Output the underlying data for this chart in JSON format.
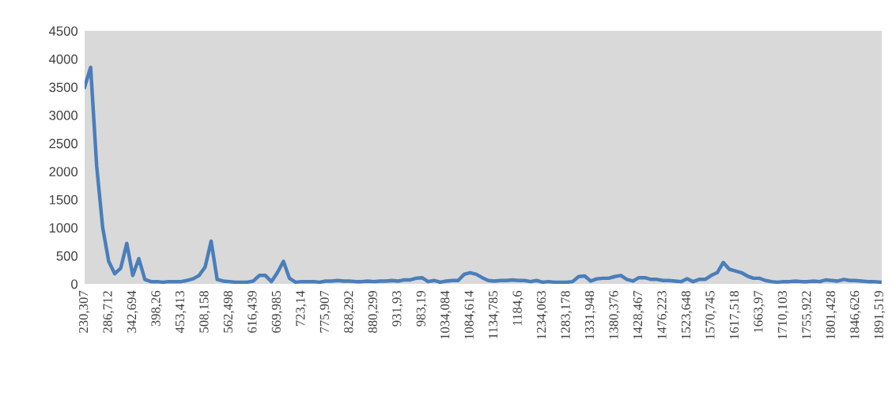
{
  "chart_data": {
    "type": "line",
    "categories": [
      "230,307",
      null,
      null,
      null,
      "286,712",
      null,
      null,
      null,
      "342,694",
      null,
      null,
      null,
      "398,26",
      null,
      null,
      null,
      "453,413",
      null,
      null,
      null,
      "508,158",
      null,
      null,
      null,
      "562,498",
      null,
      null,
      null,
      "616,439",
      null,
      null,
      null,
      "669,985",
      null,
      null,
      null,
      "723,14",
      null,
      null,
      null,
      "775,907",
      null,
      null,
      null,
      "828,292",
      null,
      null,
      null,
      "880,299",
      null,
      null,
      null,
      "931,93",
      null,
      null,
      null,
      "983,19",
      null,
      null,
      null,
      "1034,084",
      null,
      null,
      null,
      "1084,614",
      null,
      null,
      null,
      "1134,785",
      null,
      null,
      null,
      "1184,6",
      null,
      null,
      null,
      "1234,063",
      null,
      null,
      null,
      "1283,178",
      null,
      null,
      null,
      "1331,948",
      null,
      null,
      null,
      "1380,376",
      null,
      null,
      null,
      "1428,467",
      null,
      null,
      null,
      "1476,223",
      null,
      null,
      null,
      "1523,648",
      null,
      null,
      null,
      "1570,745",
      null,
      null,
      null,
      "1617,518",
      null,
      null,
      null,
      "1663,97",
      null,
      null,
      null,
      "1710,103",
      null,
      null,
      null,
      "1755,922",
      null,
      null,
      null,
      "1801,428",
      null,
      null,
      null,
      "1846,626",
      null,
      null,
      null,
      "1891,519"
    ],
    "series": [
      {
        "color": "#4a7ebb",
        "values": [
          3500,
          3850,
          2100,
          1000,
          400,
          180,
          280,
          720,
          150,
          450,
          80,
          40,
          40,
          30,
          40,
          40,
          40,
          60,
          90,
          150,
          300,
          760,
          80,
          50,
          40,
          30,
          30,
          30,
          50,
          150,
          150,
          40,
          200,
          400,
          100,
          30,
          40,
          40,
          40,
          30,
          50,
          50,
          60,
          50,
          50,
          40,
          40,
          50,
          40,
          50,
          50,
          60,
          50,
          70,
          70,
          100,
          110,
          40,
          60,
          30,
          50,
          60,
          60,
          170,
          200,
          170,
          110,
          60,
          50,
          60,
          60,
          70,
          60,
          60,
          40,
          60,
          30,
          40,
          30,
          30,
          30,
          40,
          130,
          140,
          50,
          90,
          100,
          100,
          130,
          150,
          80,
          50,
          110,
          110,
          80,
          80,
          60,
          60,
          50,
          40,
          90,
          40,
          80,
          80,
          150,
          200,
          380,
          260,
          230,
          200,
          140,
          100,
          100,
          60,
          40,
          30,
          40,
          40,
          50,
          40,
          40,
          50,
          40,
          70,
          60,
          50,
          80,
          60,
          60,
          50,
          40,
          40,
          30
        ]
      }
    ],
    "ylim": [
      0,
      4500
    ],
    "yticks": [
      0,
      500,
      1000,
      1500,
      2000,
      2500,
      3000,
      3500,
      4000,
      4500
    ],
    "grid": false,
    "legend": false,
    "marker": "none",
    "line_style": "solid"
  }
}
